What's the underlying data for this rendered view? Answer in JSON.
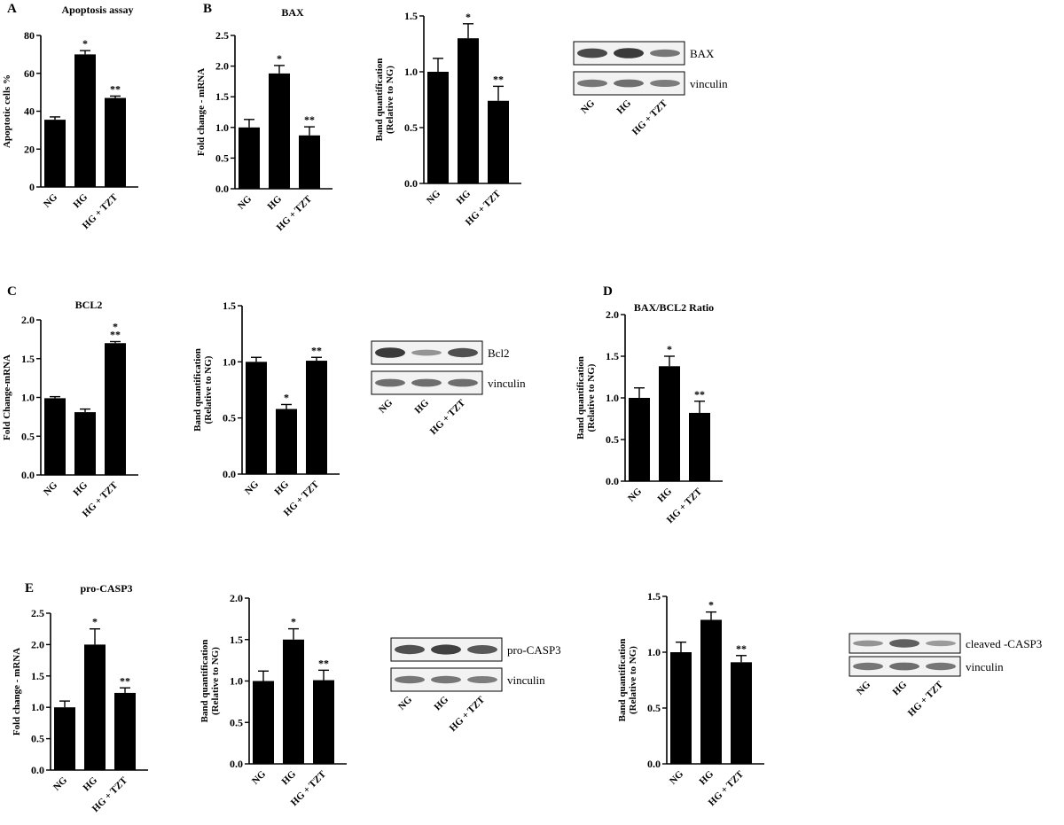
{
  "panel_letters": [
    "A",
    "B",
    "C",
    "D",
    "E"
  ],
  "chart_data": [
    {
      "type": "bar",
      "title": "Apoptosis assay",
      "ylabel": "Apoptotic cells %",
      "xlabel": "",
      "categories": [
        "NG",
        "HG",
        "HG + TZT"
      ],
      "values": [
        35.5,
        70,
        47
      ],
      "errors": [
        1.5,
        2,
        1
      ],
      "annotations": [
        "",
        "*",
        "**"
      ],
      "ylim": [
        0,
        80
      ],
      "yticks": [
        "0",
        "20",
        "40",
        "60",
        "80"
      ],
      "grid": false
    },
    {
      "type": "bar",
      "title": "BAX",
      "ylabel": "Fold change - mRNA",
      "xlabel": "",
      "categories": [
        "NG",
        "HG",
        "HG + TZT"
      ],
      "values": [
        1.0,
        1.88,
        0.87
      ],
      "errors": [
        0.13,
        0.13,
        0.14
      ],
      "annotations": [
        "",
        "*",
        "**"
      ],
      "ylim": [
        0,
        2.5
      ],
      "yticks": [
        "0.0",
        "0.5",
        "1.0",
        "1.5",
        "2.0",
        "2.5"
      ],
      "grid": false
    },
    {
      "type": "bar",
      "title": "",
      "ylabel": "Band quantification (Relative to NG)",
      "xlabel": "",
      "categories": [
        "NG",
        "HG",
        "HG + TZT"
      ],
      "values": [
        1.0,
        1.3,
        0.74
      ],
      "errors": [
        0.12,
        0.13,
        0.13
      ],
      "annotations": [
        "",
        "*",
        "**"
      ],
      "ylim": [
        0,
        1.5
      ],
      "yticks": [
        "0.0",
        "0.5",
        "1.0",
        "1.5"
      ],
      "grid": false
    },
    {
      "type": "bar",
      "title": "BCL2",
      "ylabel": "Fold Change-mRNA",
      "xlabel": "",
      "categories": [
        "NG",
        "HG",
        "HG + TZT"
      ],
      "values": [
        0.99,
        0.81,
        1.7
      ],
      "errors": [
        0.02,
        0.04,
        0.02
      ],
      "annotations": [
        "",
        "",
        "*\n**"
      ],
      "ylim": [
        0,
        2.0
      ],
      "yticks": [
        "0.0",
        "0.5",
        "1.0",
        "1.5",
        "2.0"
      ],
      "grid": false
    },
    {
      "type": "bar",
      "title": "",
      "ylabel": "Band quantification (Relative to NG)",
      "xlabel": "",
      "categories": [
        "NG",
        "HG",
        "HG + TZT"
      ],
      "values": [
        1.0,
        0.58,
        1.01
      ],
      "errors": [
        0.04,
        0.04,
        0.03
      ],
      "annotations": [
        "",
        "*",
        "**"
      ],
      "ylim": [
        0,
        1.5
      ],
      "yticks": [
        "0.0",
        "0.5",
        "1.0",
        "1.5"
      ],
      "grid": false
    },
    {
      "type": "bar",
      "title": "BAX/BCL2 Ratio",
      "ylabel": "Band quantification (Relative to NG)",
      "xlabel": "",
      "categories": [
        "NG",
        "HG",
        "HG + TZT"
      ],
      "values": [
        1.0,
        1.38,
        0.82
      ],
      "errors": [
        0.12,
        0.12,
        0.14
      ],
      "annotations": [
        "",
        "*",
        "**"
      ],
      "ylim": [
        0,
        2.0
      ],
      "yticks": [
        "0.0",
        "0.5",
        "1.0",
        "1.5",
        "2.0"
      ],
      "grid": false
    },
    {
      "type": "bar",
      "title": "pro-CASP3",
      "ylabel": "Fold change - mRNA",
      "xlabel": "",
      "categories": [
        "NG",
        "HG",
        "HG + TZT"
      ],
      "values": [
        1.0,
        2.0,
        1.23
      ],
      "errors": [
        0.1,
        0.25,
        0.08
      ],
      "annotations": [
        "",
        "*",
        "**"
      ],
      "ylim": [
        0,
        2.5
      ],
      "yticks": [
        "0.0",
        "0.5",
        "1.0",
        "1.5",
        "2.0",
        "2.5"
      ],
      "grid": false
    },
    {
      "type": "bar",
      "title": "",
      "ylabel": "Band quantification (Relative to NG)",
      "xlabel": "",
      "categories": [
        "NG",
        "HG",
        "HG + TZT"
      ],
      "values": [
        1.0,
        1.5,
        1.01
      ],
      "errors": [
        0.12,
        0.13,
        0.12
      ],
      "annotations": [
        "",
        "*",
        "**"
      ],
      "ylim": [
        0,
        2.0
      ],
      "yticks": [
        "0.0",
        "0.5",
        "1.0",
        "1.5",
        "2.0"
      ],
      "grid": false
    },
    {
      "type": "bar",
      "title": "",
      "ylabel": "Band quantification (Relative to NG)",
      "xlabel": "",
      "categories": [
        "NG",
        "HG",
        "HG + TZT"
      ],
      "values": [
        1.0,
        1.29,
        0.91
      ],
      "errors": [
        0.09,
        0.07,
        0.06
      ],
      "annotations": [
        "",
        "*",
        "**"
      ],
      "ylim": [
        0,
        1.5
      ],
      "yticks": [
        "0.0",
        "0.5",
        "1.0",
        "1.5"
      ],
      "grid": false
    }
  ],
  "blots": [
    {
      "labels": [
        "BAX",
        "vinculin"
      ],
      "lanes": [
        "NG",
        "HG",
        "HG + TZT"
      ],
      "band_intensity": [
        [
          0.85,
          0.95,
          0.55
        ],
        [
          0.55,
          0.6,
          0.5
        ]
      ]
    },
    {
      "labels": [
        "Bcl2",
        "vinculin"
      ],
      "lanes": [
        "NG",
        "HG",
        "HG + TZT"
      ],
      "band_intensity": [
        [
          0.95,
          0.35,
          0.8
        ],
        [
          0.6,
          0.6,
          0.6
        ]
      ]
    },
    {
      "labels": [
        "pro-CASP3",
        "vinculin"
      ],
      "lanes": [
        "NG",
        "HG",
        "HG + TZT"
      ],
      "band_intensity": [
        [
          0.8,
          0.9,
          0.75
        ],
        [
          0.55,
          0.55,
          0.5
        ]
      ]
    },
    {
      "labels": [
        "cleaved -CASP3",
        "vinculin"
      ],
      "lanes": [
        "NG",
        "HG",
        "HG + TZT"
      ],
      "band_intensity": [
        [
          0.35,
          0.7,
          0.3
        ],
        [
          0.55,
          0.6,
          0.55
        ]
      ]
    }
  ]
}
